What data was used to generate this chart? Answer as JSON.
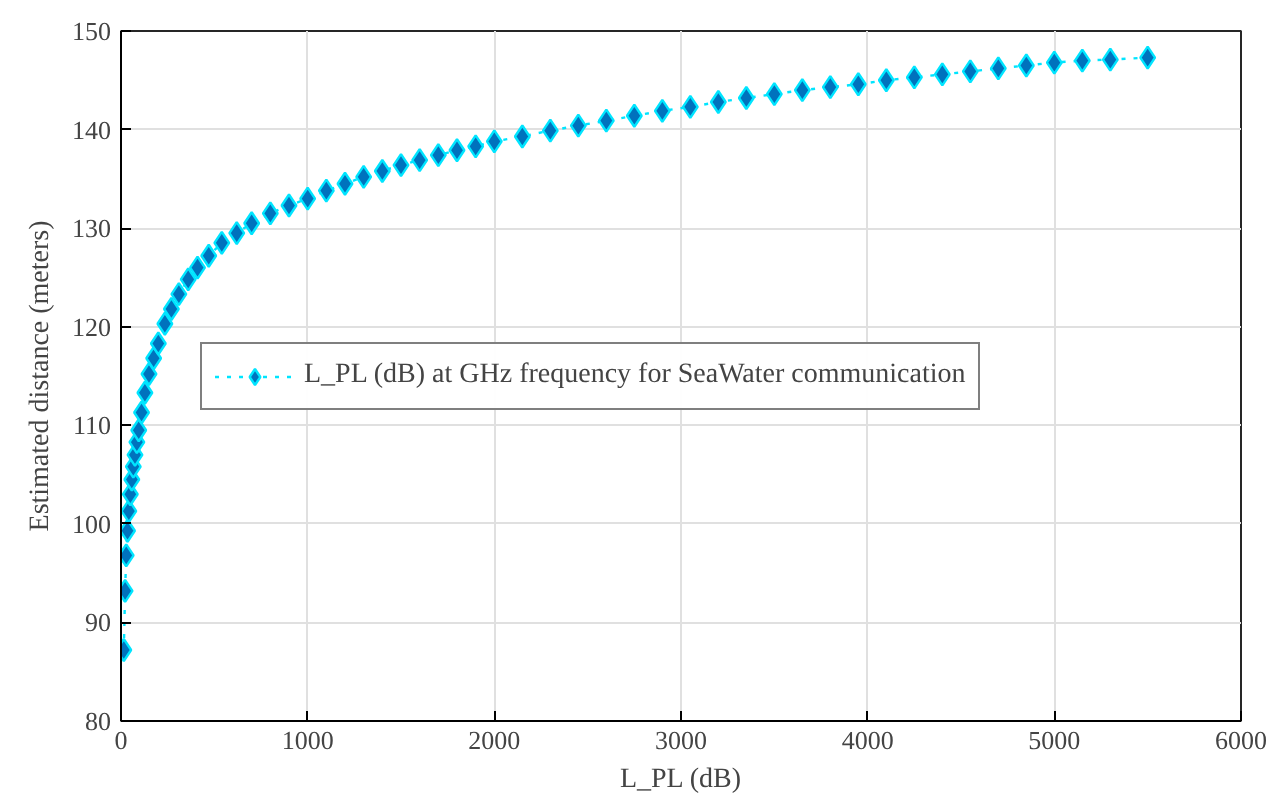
{
  "chart_data": {
    "type": "line",
    "xlabel": "L_PL (dB)",
    "ylabel": "Estimated distance (meters)",
    "xlim": [
      0,
      6000
    ],
    "xticks": [
      0,
      1000,
      2000,
      3000,
      4000,
      5000,
      6000
    ],
    "ylim": [
      80,
      150
    ],
    "yticks": [
      80,
      90,
      100,
      110,
      120,
      130,
      140,
      150
    ],
    "grid": true,
    "legend": "left",
    "marker": "diamond",
    "line_style": "dotted",
    "series": [
      {
        "name": "L_PL (dB) at GHz frequency for SeaWater communication",
        "color": "#0072bd",
        "x": [
          15,
          22,
          28,
          35,
          42,
          50,
          58,
          66,
          75,
          85,
          95,
          110,
          128,
          150,
          175,
          200,
          235,
          270,
          310,
          360,
          410,
          470,
          540,
          620,
          700,
          800,
          900,
          1000,
          1100,
          1200,
          1300,
          1400,
          1500,
          1600,
          1700,
          1800,
          1900,
          2000,
          2150,
          2300,
          2450,
          2600,
          2750,
          2900,
          3050,
          3200,
          3350,
          3500,
          3650,
          3800,
          3950,
          4100,
          4250,
          4400,
          4550,
          4700,
          4850,
          5000,
          5150,
          5300,
          5500
        ],
        "values": [
          87.2,
          93.2,
          96.8,
          99.3,
          101.3,
          103.0,
          104.5,
          105.8,
          107.0,
          108.3,
          109.5,
          111.3,
          113.3,
          115.2,
          116.8,
          118.3,
          120.3,
          121.8,
          123.3,
          124.8,
          126.0,
          127.2,
          128.5,
          129.5,
          130.5,
          131.5,
          132.3,
          133.0,
          133.8,
          134.5,
          135.2,
          135.8,
          136.4,
          136.9,
          137.4,
          137.9,
          138.3,
          138.8,
          139.3,
          139.9,
          140.4,
          140.9,
          141.4,
          141.9,
          142.3,
          142.8,
          143.2,
          143.6,
          144.0,
          144.3,
          144.6,
          145.0,
          145.3,
          145.6,
          145.9,
          146.2,
          146.5,
          146.8,
          147.0,
          147.1,
          147.3
        ]
      }
    ]
  }
}
